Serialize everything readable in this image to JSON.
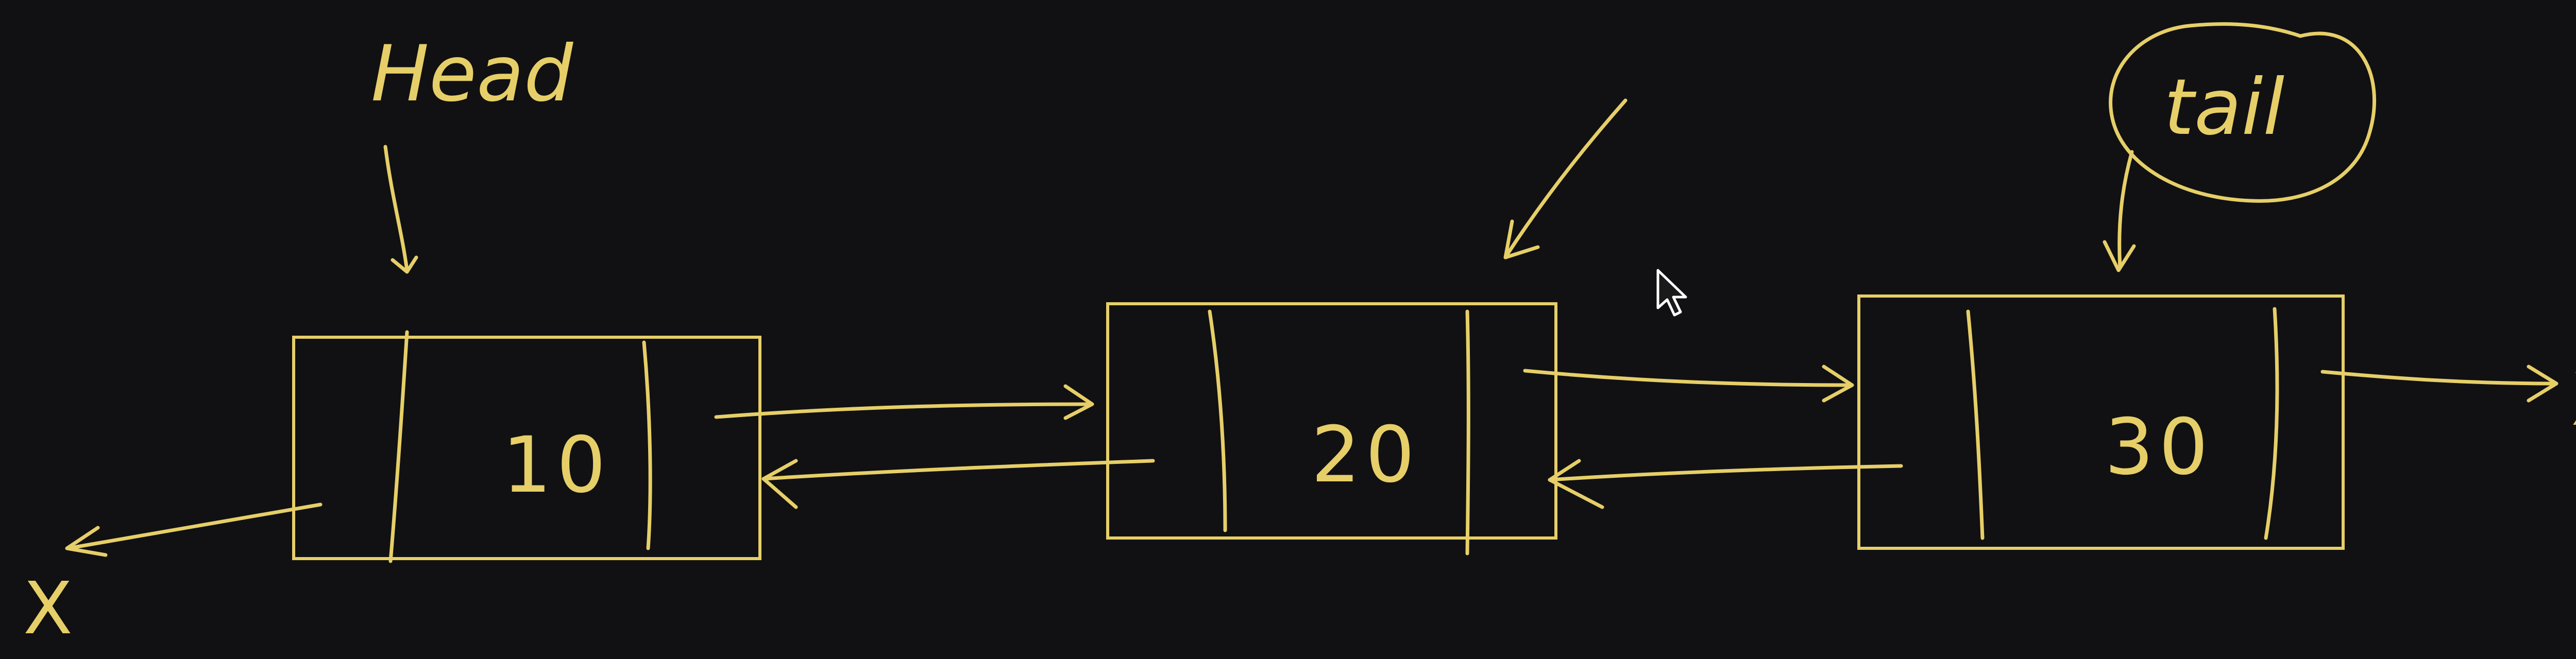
{
  "nodes": [
    {
      "value": "10"
    },
    {
      "value": "20"
    },
    {
      "value": "30"
    }
  ],
  "labels": {
    "head": "Head",
    "tail": "tail",
    "null_marker": "X"
  },
  "colors": {
    "background": "#111113",
    "ink": "#e6cf68",
    "cursor": "#ffffff"
  },
  "icons": {
    "cursor": "mouse-pointer-icon"
  }
}
